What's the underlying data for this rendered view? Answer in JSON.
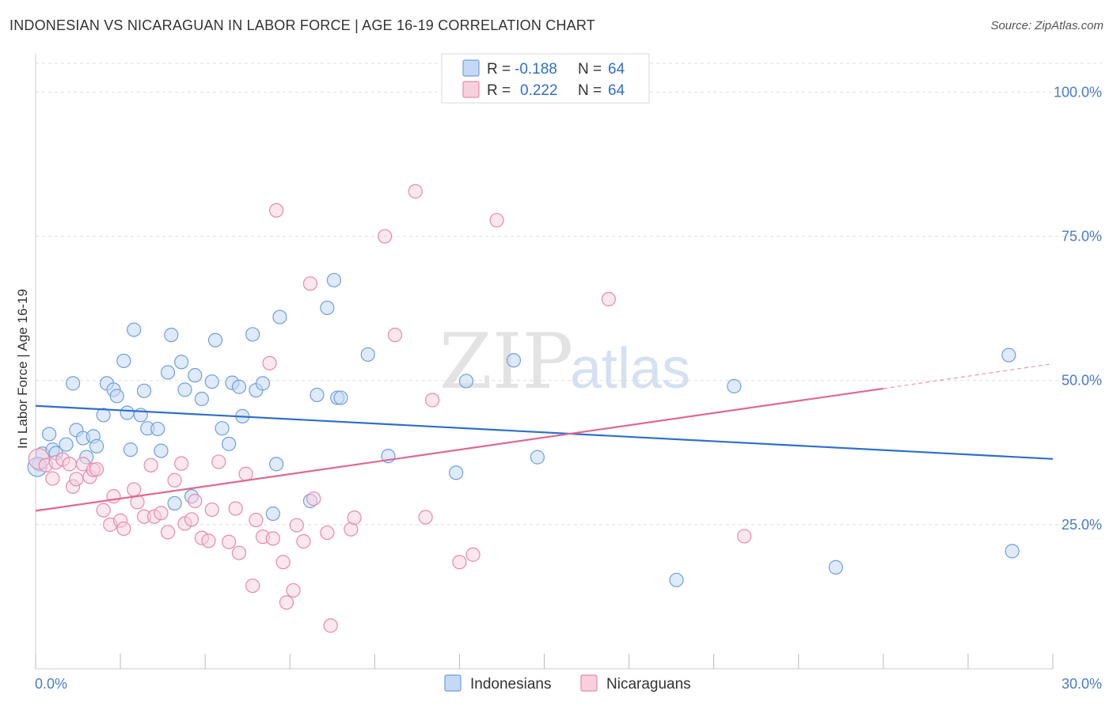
{
  "header": {
    "title": "INDONESIAN VS NICARAGUAN IN LABOR FORCE | AGE 16-19 CORRELATION CHART",
    "source": "Source: ZipAtlas.com"
  },
  "watermark": {
    "part1": "ZIP",
    "part2": "atlas"
  },
  "colors": {
    "indonesians": "#6f9fe0",
    "indonesians_fill": "#c5d9f5",
    "indonesians_line": "#2f6fcc",
    "nicaraguans": "#e88aa8",
    "nicaraguans_fill": "#f8d0dd",
    "nicaraguans_line": "#e06890",
    "axis_text": "#4a7cc7"
  },
  "legend": {
    "rows": [
      {
        "r_label": "R =",
        "r_value": "-0.188",
        "n_label": "N =",
        "n_value": "64"
      },
      {
        "r_label": "R =",
        "r_value": "0.222",
        "n_label": "N =",
        "n_value": "64"
      }
    ]
  },
  "bottom_legend": {
    "items": [
      "Indonesians",
      "Nicaraguans"
    ]
  },
  "chart_data": {
    "type": "scatter",
    "title": "INDONESIAN VS NICARAGUAN IN LABOR FORCE | AGE 16-19 CORRELATION CHART",
    "xlabel": "",
    "ylabel": "In Labor Force | Age 16-19",
    "xlim": [
      0,
      30
    ],
    "ylim": [
      0,
      105
    ],
    "x_tick_labels": [
      "0.0%",
      "30.0%"
    ],
    "y_tick_values": [
      25,
      50,
      75,
      100
    ],
    "y_tick_labels": [
      "25.0%",
      "50.0%",
      "75.0%",
      "100.0%"
    ],
    "grid": "horizontal dashed",
    "legend_position": "top-center",
    "series": [
      {
        "name": "Indonesians",
        "r": -0.188,
        "n": 64,
        "trend": {
          "x": [
            0,
            30
          ],
          "y": [
            45.6,
            36.4
          ]
        },
        "points": [
          [
            0.1,
            35.5
          ],
          [
            0.2,
            37.3
          ],
          [
            0.4,
            40.7
          ],
          [
            0.5,
            38.0
          ],
          [
            0.6,
            37.4
          ],
          [
            0.9,
            38.9
          ],
          [
            1.1,
            49.5
          ],
          [
            1.2,
            41.4
          ],
          [
            1.4,
            40.0
          ],
          [
            1.5,
            36.7
          ],
          [
            1.7,
            40.3
          ],
          [
            1.8,
            38.6
          ],
          [
            2.0,
            44.0
          ],
          [
            2.1,
            49.5
          ],
          [
            2.3,
            48.4
          ],
          [
            2.4,
            47.3
          ],
          [
            2.6,
            53.4
          ],
          [
            2.7,
            44.4
          ],
          [
            2.8,
            38.0
          ],
          [
            2.9,
            58.8
          ],
          [
            3.1,
            44.0
          ],
          [
            3.2,
            48.2
          ],
          [
            3.3,
            41.7
          ],
          [
            3.6,
            41.6
          ],
          [
            3.7,
            37.8
          ],
          [
            3.9,
            51.4
          ],
          [
            4.0,
            57.9
          ],
          [
            4.1,
            28.7
          ],
          [
            4.3,
            53.2
          ],
          [
            4.4,
            48.4
          ],
          [
            4.6,
            29.9
          ],
          [
            4.7,
            50.9
          ],
          [
            4.9,
            46.8
          ],
          [
            5.2,
            49.8
          ],
          [
            5.3,
            57.0
          ],
          [
            5.5,
            41.7
          ],
          [
            5.7,
            39.0
          ],
          [
            5.8,
            49.6
          ],
          [
            6.0,
            48.9
          ],
          [
            6.1,
            43.8
          ],
          [
            6.4,
            58.0
          ],
          [
            6.5,
            48.3
          ],
          [
            6.7,
            49.5
          ],
          [
            7.0,
            26.9
          ],
          [
            7.1,
            35.5
          ],
          [
            7.2,
            61.0
          ],
          [
            8.1,
            29.1
          ],
          [
            8.3,
            47.5
          ],
          [
            8.6,
            62.6
          ],
          [
            8.8,
            67.4
          ],
          [
            8.9,
            47.0
          ],
          [
            9.0,
            47.0
          ],
          [
            9.8,
            54.5
          ],
          [
            10.4,
            36.9
          ],
          [
            12.4,
            34.0
          ],
          [
            12.7,
            49.9
          ],
          [
            14.1,
            53.5
          ],
          [
            14.8,
            36.7
          ],
          [
            18.9,
            15.4
          ],
          [
            20.6,
            49.0
          ],
          [
            23.6,
            17.6
          ],
          [
            28.7,
            54.4
          ],
          [
            28.8,
            20.4
          ],
          [
            0.05,
            35.0
          ]
        ]
      },
      {
        "name": "Nicaraguans",
        "r": 0.222,
        "n": 64,
        "trend": {
          "x": [
            0,
            25
          ],
          "y": [
            27.4,
            48.6
          ]
        },
        "trend_dashed": {
          "x": [
            25,
            30
          ],
          "y": [
            48.6,
            52.9
          ]
        },
        "points": [
          [
            0.1,
            36.4
          ],
          [
            0.3,
            35.3
          ],
          [
            0.5,
            33.0
          ],
          [
            0.6,
            35.8
          ],
          [
            0.8,
            36.3
          ],
          [
            1.0,
            35.5
          ],
          [
            1.1,
            31.6
          ],
          [
            1.2,
            32.9
          ],
          [
            1.4,
            35.5
          ],
          [
            1.6,
            33.3
          ],
          [
            1.7,
            34.5
          ],
          [
            1.8,
            34.6
          ],
          [
            2.0,
            27.5
          ],
          [
            2.2,
            25.0
          ],
          [
            2.3,
            29.9
          ],
          [
            2.5,
            25.7
          ],
          [
            2.6,
            24.3
          ],
          [
            2.9,
            31.1
          ],
          [
            3.0,
            28.9
          ],
          [
            3.2,
            26.4
          ],
          [
            3.4,
            35.3
          ],
          [
            3.5,
            26.4
          ],
          [
            3.7,
            27.0
          ],
          [
            3.9,
            23.7
          ],
          [
            4.1,
            32.7
          ],
          [
            4.3,
            35.6
          ],
          [
            4.4,
            25.2
          ],
          [
            4.6,
            25.9
          ],
          [
            4.7,
            29.1
          ],
          [
            4.9,
            22.7
          ],
          [
            5.1,
            22.2
          ],
          [
            5.2,
            27.6
          ],
          [
            5.4,
            35.9
          ],
          [
            5.7,
            22.0
          ],
          [
            5.9,
            27.8
          ],
          [
            6.0,
            20.1
          ],
          [
            6.2,
            33.8
          ],
          [
            6.4,
            14.4
          ],
          [
            6.5,
            25.8
          ],
          [
            6.7,
            22.9
          ],
          [
            6.9,
            53.0
          ],
          [
            7.0,
            22.6
          ],
          [
            7.1,
            79.5
          ],
          [
            7.3,
            18.5
          ],
          [
            7.4,
            11.5
          ],
          [
            7.6,
            13.6
          ],
          [
            7.7,
            24.9
          ],
          [
            7.9,
            22.1
          ],
          [
            8.1,
            66.8
          ],
          [
            8.2,
            29.5
          ],
          [
            8.6,
            23.6
          ],
          [
            8.7,
            7.5
          ],
          [
            9.3,
            24.2
          ],
          [
            9.4,
            26.2
          ],
          [
            10.3,
            75.0
          ],
          [
            10.6,
            57.9
          ],
          [
            11.2,
            82.8
          ],
          [
            11.5,
            26.3
          ],
          [
            11.7,
            46.6
          ],
          [
            12.5,
            18.5
          ],
          [
            12.9,
            19.8
          ],
          [
            13.6,
            77.8
          ],
          [
            16.9,
            64.1
          ],
          [
            20.9,
            23.0
          ]
        ]
      }
    ]
  }
}
